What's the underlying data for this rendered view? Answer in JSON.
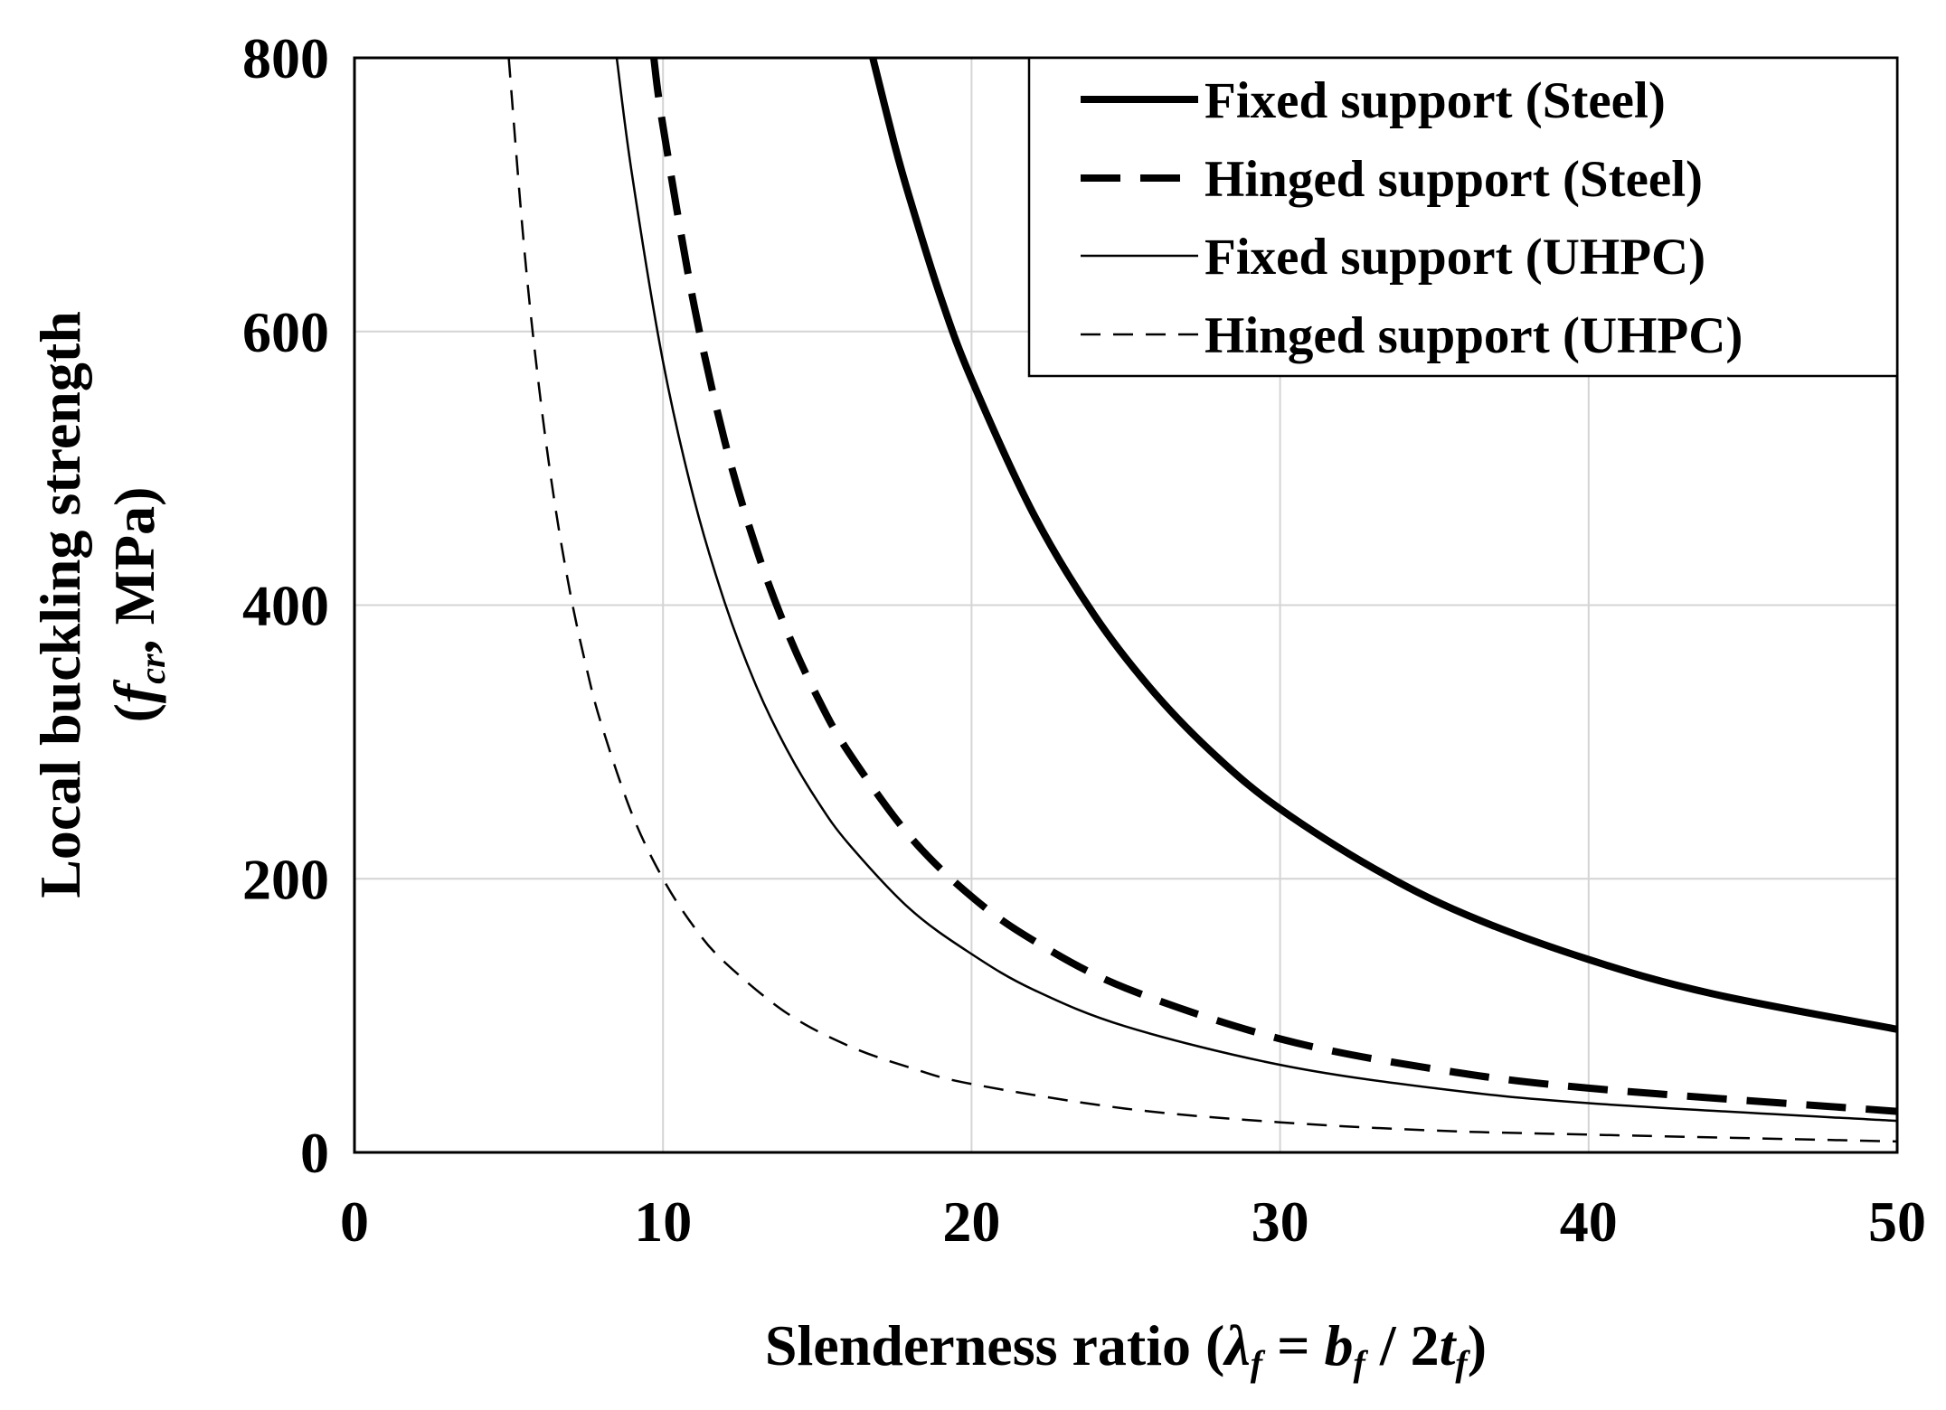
{
  "chart_data": {
    "type": "line",
    "title": "",
    "xlabel": {
      "prefix": "Slenderness ratio (",
      "lambda": "λ",
      "lambda_sub": "f",
      "eq": " = ",
      "b": "b",
      "b_sub": "f",
      "slash": " / 2",
      "t": "t",
      "t_sub": "f",
      "suffix": ")"
    },
    "ylabel": {
      "line1": "Local buckling strength",
      "open": "(",
      "f": "f",
      "f_sub": "cr",
      "rest": ", MPa)"
    },
    "xlim": [
      0,
      50
    ],
    "ylim": [
      0,
      800
    ],
    "xticks": [
      0,
      10,
      20,
      30,
      40,
      50
    ],
    "yticks": [
      0,
      200,
      400,
      600,
      800
    ],
    "grid": true,
    "legend_position": "top-right",
    "series": [
      {
        "name": "Fixed support (Steel)",
        "style": "thick-solid",
        "x": [
          16.8,
          17.5,
          18,
          19,
          20,
          22,
          24,
          26,
          28,
          30,
          33,
          36,
          40,
          44,
          50
        ],
        "y": [
          800,
          737,
          697,
          625,
          565,
          467,
          392,
          334,
          288,
          251,
          208,
          174,
          141,
          116,
          90
        ]
      },
      {
        "name": "Hinged support (Steel)",
        "style": "thick-dashed",
        "x": [
          9.7,
          10,
          11,
          12,
          13,
          14,
          15,
          16,
          18,
          20,
          22,
          25,
          30,
          35,
          40,
          50
        ],
        "y": [
          800,
          750,
          620,
          520,
          443,
          382,
          333,
          293,
          231,
          187,
          155,
          120,
          83,
          61,
          47,
          30
        ]
      },
      {
        "name": "Fixed support (UHPC)",
        "style": "thin-solid",
        "x": [
          8.5,
          9,
          10,
          11,
          12,
          13,
          14,
          15,
          16,
          18,
          20,
          22,
          25,
          30,
          35,
          40,
          50
        ],
        "y": [
          800,
          714,
          578,
          478,
          402,
          342,
          295,
          257,
          226,
          178,
          145,
          119,
          92,
          64,
          47,
          36,
          23
        ]
      },
      {
        "name": "Hinged support (UHPC)",
        "style": "thin-dashed",
        "x": [
          5,
          5.5,
          6,
          6.5,
          7,
          7.5,
          8,
          9,
          10,
          11,
          12,
          14,
          16,
          18,
          20,
          25,
          30,
          35,
          40,
          50
        ],
        "y": [
          800,
          661,
          556,
          473,
          408,
          356,
          313,
          247,
          200,
          165,
          139,
          102,
          78,
          62,
          50,
          32,
          22,
          16,
          13,
          8
        ]
      }
    ]
  }
}
